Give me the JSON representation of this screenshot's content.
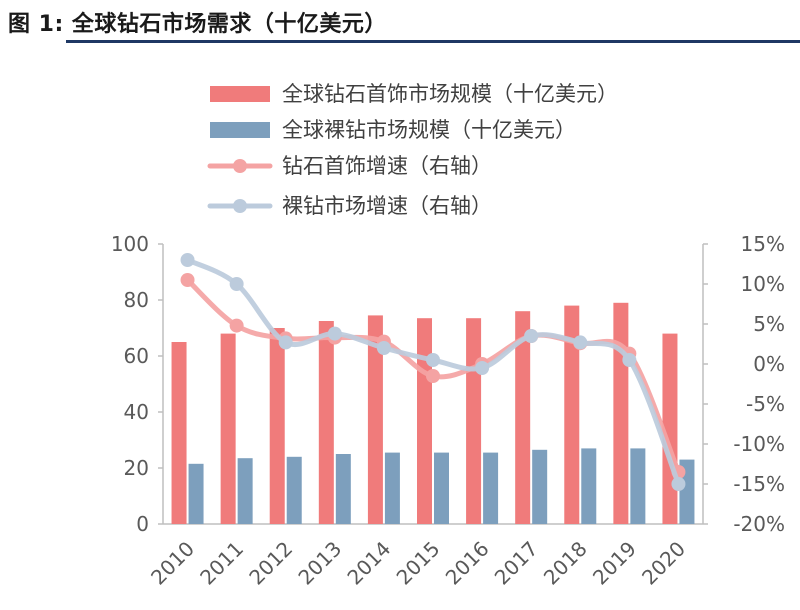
{
  "title": "图 1: 全球钻石市场需求（十亿美元）",
  "colors": {
    "jewelry_bar": "#f07b7b",
    "polished_bar": "#7d9fbd",
    "jewelry_line": "#f4a3a3",
    "polished_line": "#bccbdc",
    "axis": "#bfbfbf",
    "title_rule": "#1f3864"
  },
  "chart_data": {
    "type": "bar",
    "categories": [
      "2010",
      "2011",
      "2012",
      "2013",
      "2014",
      "2015",
      "2016",
      "2017",
      "2018",
      "2019",
      "2020"
    ],
    "series": [
      {
        "name": "全球钻石首饰市场规模（十亿美元）",
        "type": "bar",
        "axis": "left",
        "values": [
          65,
          68,
          70,
          72.5,
          74.5,
          73.5,
          73.5,
          76,
          78,
          79,
          68
        ]
      },
      {
        "name": "全球裸钻市场规模（十亿美元）",
        "type": "bar",
        "axis": "left",
        "values": [
          21.5,
          23.5,
          24,
          25,
          25.5,
          25.5,
          25.5,
          26.5,
          27,
          27,
          23
        ]
      },
      {
        "name": "钻石首饰增速（右轴）",
        "type": "line",
        "axis": "right",
        "values": [
          10.5,
          4.8,
          3.2,
          3.3,
          2.8,
          -1.5,
          0,
          3.5,
          2.6,
          1.3,
          -13.5
        ]
      },
      {
        "name": "裸钻市场增速（右轴）",
        "type": "line",
        "axis": "right",
        "values": [
          13,
          10,
          2.7,
          3.8,
          2,
          0.5,
          -0.5,
          3.5,
          2.7,
          0.5,
          -15
        ]
      }
    ],
    "y_left": {
      "min": 0,
      "max": 100,
      "ticks": [
        "0",
        "20",
        "40",
        "60",
        "80",
        "100"
      ]
    },
    "y_right": {
      "min": -20,
      "max": 15,
      "ticks": [
        "-20%",
        "-15%",
        "-10%",
        "-5%",
        "0%",
        "5%",
        "10%",
        "15%"
      ]
    },
    "legend_position": "top",
    "grid": false
  }
}
